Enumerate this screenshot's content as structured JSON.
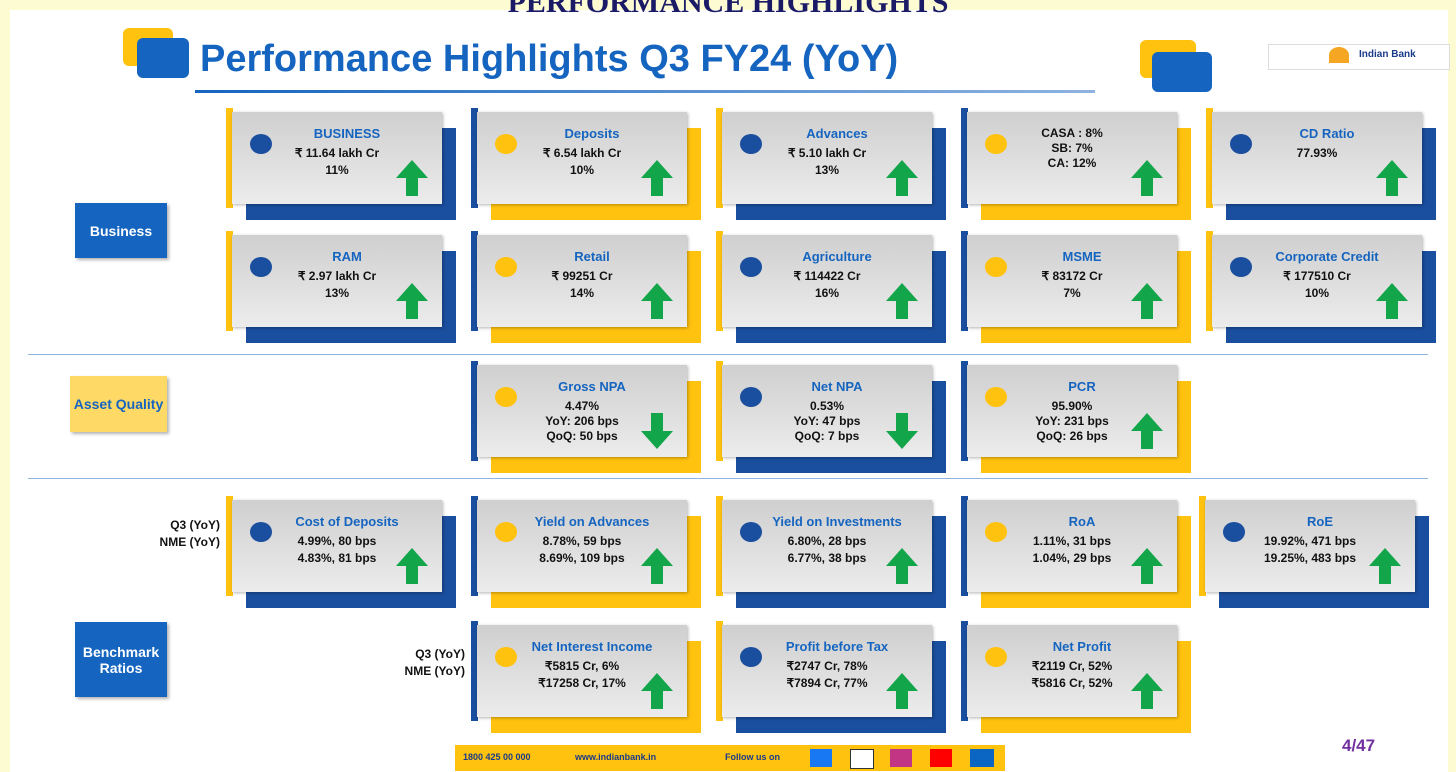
{
  "header": {
    "top_text": "PERFORMANCE HIGHLIGHTS",
    "title": "Performance Highlights Q3 FY24 (YoY)",
    "logo": "Indian Bank"
  },
  "sections": [
    {
      "label": "Business"
    },
    {
      "label": "Asset Quality"
    },
    {
      "label": "Benchmark Ratios"
    }
  ],
  "row_labels": [
    {
      "lines": [
        "Q3 (YoY)",
        "NME (YoY)"
      ]
    },
    {
      "lines": [
        "Q3 (YoY)",
        "NME (YoY)"
      ]
    }
  ],
  "cards": [
    {
      "title": "BUSINESS",
      "lines": [
        "₹ 11.64 lakh Cr",
        "11%"
      ],
      "arrow": "up",
      "theme": "blue"
    },
    {
      "title": "Deposits",
      "lines": [
        "₹ 6.54 lakh Cr",
        "10%"
      ],
      "arrow": "up",
      "theme": "yellow"
    },
    {
      "title": "Advances",
      "lines": [
        "₹ 5.10 lakh Cr",
        "13%"
      ],
      "arrow": "up",
      "theme": "blue"
    },
    {
      "lines": [
        "CASA : 8%",
        "SB: 7%",
        "CA: 12%"
      ],
      "arrow": "up",
      "theme": "yellow"
    },
    {
      "title": "CD Ratio",
      "lines": [
        "77.93%"
      ],
      "arrow": "up",
      "theme": "blue"
    },
    {
      "title": "RAM",
      "lines": [
        "₹ 2.97 lakh Cr",
        "13%"
      ],
      "arrow": "up",
      "theme": "blue"
    },
    {
      "title": "Retail",
      "lines": [
        "₹ 99251 Cr",
        "14%"
      ],
      "arrow": "up",
      "theme": "yellow"
    },
    {
      "title": "Agriculture",
      "lines": [
        "₹ 114422 Cr",
        "16%"
      ],
      "arrow": "up",
      "theme": "blue"
    },
    {
      "title": "MSME",
      "lines": [
        "₹ 83172 Cr",
        "7%"
      ],
      "arrow": "up",
      "theme": "yellow"
    },
    {
      "title": "Corporate Credit",
      "lines": [
        "₹ 177510 Cr",
        "10%"
      ],
      "arrow": "up",
      "theme": "blue"
    },
    {
      "title": "Gross NPA",
      "lines": [
        "4.47%",
        "YoY: 206 bps",
        "QoQ: 50 bps"
      ],
      "arrow": "down",
      "theme": "yellow"
    },
    {
      "title": "Net NPA",
      "lines": [
        "0.53%",
        "YoY: 47 bps",
        "QoQ: 7 bps"
      ],
      "arrow": "down",
      "theme": "blue"
    },
    {
      "title": "PCR",
      "lines": [
        "95.90%",
        "YoY: 231 bps",
        "QoQ: 26 bps"
      ],
      "arrow": "up",
      "theme": "yellow"
    },
    {
      "title": "Cost of Deposits",
      "lines": [
        "4.99%,  80 bps",
        "4.83%,  81 bps"
      ],
      "arrow": "up",
      "theme": "blue"
    },
    {
      "title": "Yield on Advances",
      "lines": [
        "8.78%,  59 bps",
        "8.69%,  109 bps"
      ],
      "arrow": "up",
      "theme": "yellow"
    },
    {
      "title": "Yield on Investments",
      "lines": [
        "6.80%,  28 bps",
        "6.77%,  38 bps"
      ],
      "arrow": "up",
      "theme": "blue"
    },
    {
      "title": "RoA",
      "lines": [
        "1.11%,  31 bps",
        "1.04%,  29 bps"
      ],
      "arrow": "up",
      "theme": "yellow"
    },
    {
      "title": "RoE",
      "lines": [
        "19.92%,  471 bps",
        "19.25%,  483 bps"
      ],
      "arrow": "up",
      "theme": "blue"
    },
    {
      "title": "Net Interest Income",
      "lines": [
        "₹5815 Cr, 6%",
        "₹17258 Cr, 17%"
      ],
      "arrow": "up",
      "theme": "yellow"
    },
    {
      "title": "Profit before Tax",
      "lines": [
        "₹2747 Cr, 78%",
        "₹7894 Cr, 77%"
      ],
      "arrow": "up",
      "theme": "blue"
    },
    {
      "title": "Net Profit",
      "lines": [
        "₹2119 Cr, 52%",
        "₹5816 Cr, 52%"
      ],
      "arrow": "up",
      "theme": "yellow"
    }
  ],
  "footer": {
    "phone": "1800 425 00 000",
    "website": "www.indianbank.in",
    "follow": "Follow us on"
  },
  "page_number": "4/47"
}
